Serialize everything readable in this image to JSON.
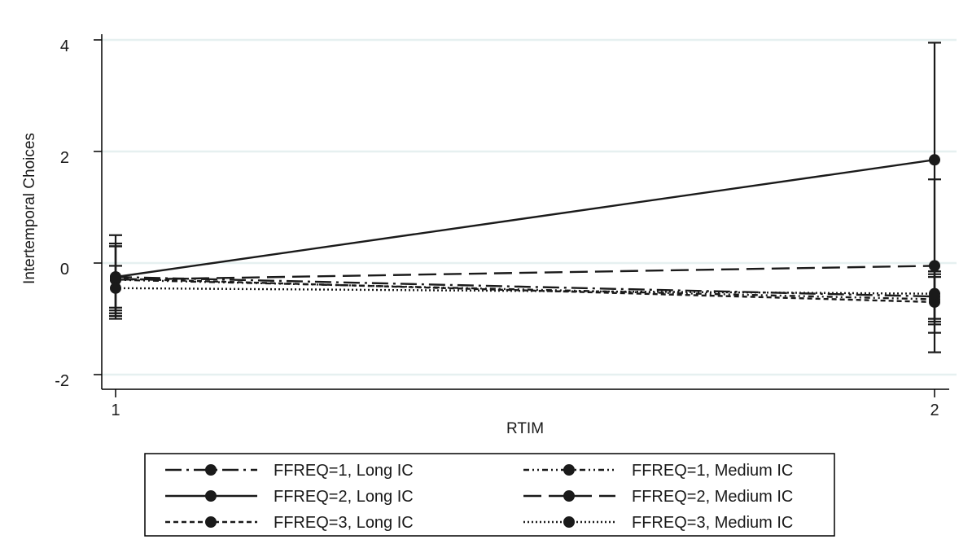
{
  "chart_data": {
    "type": "line",
    "title": "",
    "xlabel": "RTIM",
    "ylabel": "Intertemporal Choices",
    "x": [
      1,
      2
    ],
    "xticks": [
      1,
      2
    ],
    "yticks": [
      -2,
      0,
      2,
      4
    ],
    "xlim": [
      1,
      2
    ],
    "ylim": [
      -2,
      4
    ],
    "grid": true,
    "legend_position": "bottom",
    "series": [
      {
        "name": "FFREQ=1, Long IC",
        "style": "longdash-dot",
        "values": [
          -0.25,
          -0.6
        ],
        "ci_low": [
          -0.8,
          -1.05
        ],
        "ci_high": [
          0.3,
          -0.15
        ]
      },
      {
        "name": "FFREQ=1, Medium IC",
        "style": "dash-dot-dot",
        "values": [
          -0.3,
          -0.65
        ],
        "ci_low": [
          -0.9,
          -1.1
        ],
        "ci_high": [
          0.3,
          -0.2
        ]
      },
      {
        "name": "FFREQ=2, Long IC",
        "style": "solid",
        "values": [
          -0.25,
          1.85
        ],
        "ci_low": [
          -1.0,
          -1.6
        ],
        "ci_high": [
          0.5,
          3.95
        ]
      },
      {
        "name": "FFREQ=2, Medium IC",
        "style": "longdash",
        "values": [
          -0.3,
          -0.05
        ],
        "ci_low": [
          -0.95,
          -1.0
        ],
        "ci_high": [
          0.35,
          1.5
        ]
      },
      {
        "name": "FFREQ=3, Long IC",
        "style": "shortdash",
        "values": [
          -0.28,
          -0.7
        ],
        "ci_low": [
          -0.9,
          -1.25
        ],
        "ci_high": [
          0.3,
          -0.25
        ]
      },
      {
        "name": "FFREQ=3, Medium IC",
        "style": "dot",
        "values": [
          -0.45,
          -0.55
        ],
        "ci_low": [
          -0.85,
          -1.0
        ],
        "ci_high": [
          -0.05,
          -0.15
        ]
      }
    ]
  }
}
